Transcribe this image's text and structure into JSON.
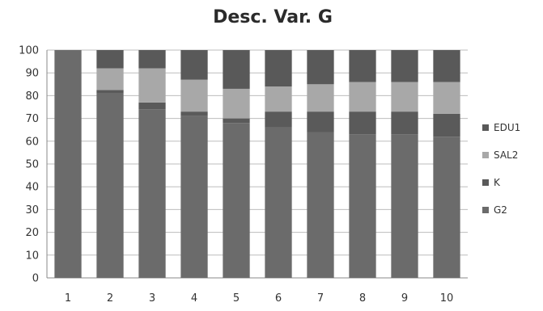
{
  "chart_data": {
    "type": "bar",
    "stacked": true,
    "title": "Desc. Var. G",
    "xlabel": "",
    "ylabel": "",
    "ylim": [
      0,
      100
    ],
    "yticks": [
      0,
      10,
      20,
      30,
      40,
      50,
      60,
      70,
      80,
      90,
      100
    ],
    "grid": true,
    "legend": "right",
    "categories": [
      "1",
      "2",
      "3",
      "4",
      "5",
      "6",
      "7",
      "8",
      "9",
      "10"
    ],
    "series": [
      {
        "name": "G2",
        "color": "#6b6b6b",
        "values": [
          100,
          81,
          74,
          71,
          68,
          66,
          64,
          63,
          63,
          62
        ]
      },
      {
        "name": "K",
        "color": "#5a5a5a",
        "values": [
          0,
          1.5,
          3,
          2,
          2,
          7,
          9,
          10,
          10,
          10
        ]
      },
      {
        "name": "SAL2",
        "color": "#a8a8a8",
        "values": [
          0,
          9.5,
          15,
          14,
          13,
          11,
          12,
          13,
          13,
          14
        ]
      },
      {
        "name": "EDU1",
        "color": "#595959",
        "values": [
          0,
          8,
          8,
          13,
          17,
          16,
          15,
          14,
          14,
          14
        ]
      }
    ]
  }
}
